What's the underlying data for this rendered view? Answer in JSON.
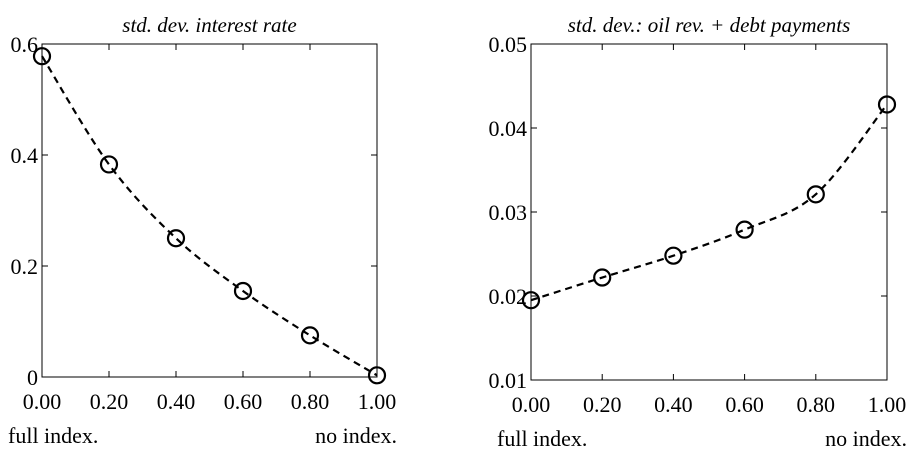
{
  "chart_data": [
    {
      "type": "line",
      "title": "std. dev. interest rate",
      "x": [
        0.0,
        0.2,
        0.4,
        0.6,
        0.8,
        1.0
      ],
      "x_tick_labels": [
        "0.00",
        "0.20",
        "0.40",
        "0.60",
        "0.80",
        "1.00"
      ],
      "y_ticks": [
        0,
        0.2,
        0.4,
        0.6
      ],
      "y_tick_labels": [
        "0",
        "0.2",
        "0.4",
        "0.6"
      ],
      "xlim": [
        0,
        1
      ],
      "ylim": [
        0,
        0.6
      ],
      "series": [
        {
          "values": [
            0.578,
            0.383,
            0.25,
            0.155,
            0.075,
            0.003
          ],
          "line_style": "dashed",
          "marker": "circle",
          "color": "#000000"
        }
      ],
      "x_end_labels": {
        "left": "full index.",
        "right": "no index."
      },
      "grid": false
    },
    {
      "type": "line",
      "title": "std. dev.: oil rev. + debt payments",
      "x": [
        0.0,
        0.2,
        0.4,
        0.6,
        0.8,
        1.0
      ],
      "x_tick_labels": [
        "0.00",
        "0.20",
        "0.40",
        "0.60",
        "0.80",
        "1.00"
      ],
      "y_ticks": [
        0.01,
        0.02,
        0.03,
        0.04,
        0.05
      ],
      "y_tick_labels": [
        "0.01",
        "0.02",
        "0.03",
        "0.04",
        "0.05"
      ],
      "xlim": [
        0,
        1
      ],
      "ylim": [
        0.01,
        0.05
      ],
      "series": [
        {
          "values": [
            0.0195,
            0.0222,
            0.0248,
            0.0279,
            0.0321,
            0.0428
          ],
          "line_style": "dashed",
          "marker": "circle",
          "color": "#000000"
        }
      ],
      "x_end_labels": {
        "left": "full index.",
        "right": "no index."
      },
      "grid": false
    }
  ]
}
